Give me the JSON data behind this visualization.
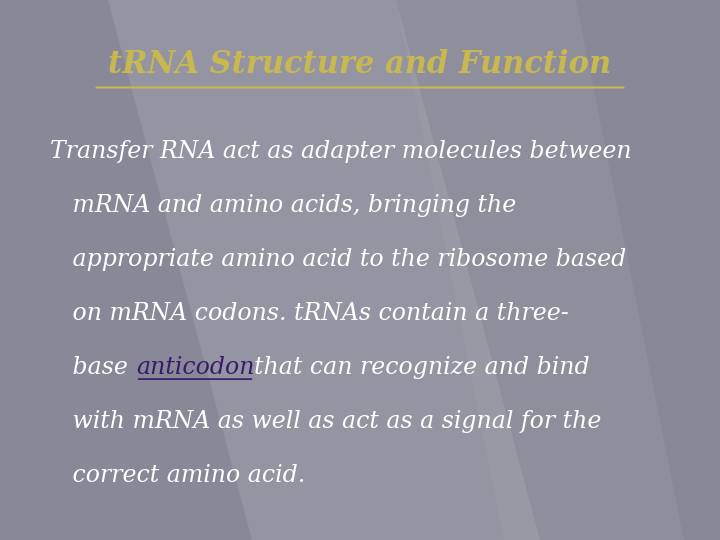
{
  "title": "tRNA Structure and Function",
  "title_color": "#C8B850",
  "title_fontsize": 22,
  "bg_color": "#888898",
  "body_text_color": "#ffffff",
  "body_fontsize": 17,
  "anticodon_color": "#3a1a6a",
  "line1": "Transfer RNA act as adapter molecules between",
  "line2": "   mRNA and amino acids, bringing the",
  "line3": "   appropriate amino acid to the ribosome based",
  "line4": "   on mRNA codons. tRNAs contain a three-",
  "line5_pre": "   base ",
  "line5_link": "anticodon",
  "line5_post": "that can recognize and bind",
  "line6": "   with mRNA as well as act as a signal for the",
  "line7": "   correct amino acid."
}
